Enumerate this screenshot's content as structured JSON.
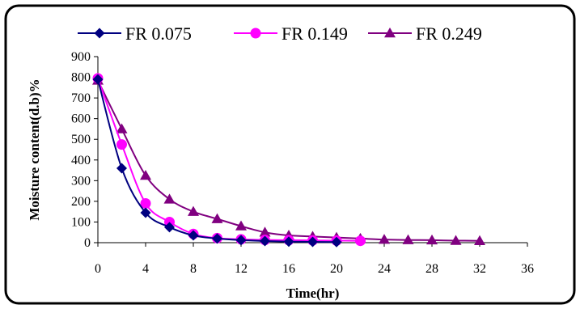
{
  "chart_data": {
    "type": "line",
    "title": "",
    "xlabel": "Time(hr)",
    "ylabel": "Moisture content(d.b)%",
    "xlim": [
      0,
      36
    ],
    "ylim": [
      0,
      900
    ],
    "xticks": [
      0,
      4,
      8,
      12,
      16,
      20,
      24,
      28,
      32,
      36
    ],
    "yticks": [
      0,
      100,
      200,
      300,
      400,
      500,
      600,
      700,
      800,
      900
    ],
    "grid": false,
    "legend_position": "top",
    "series": [
      {
        "name": "FR 0.075",
        "color": "#000080",
        "marker": "diamond",
        "x": [
          0,
          2,
          4,
          6,
          8,
          10,
          12,
          14,
          16,
          18,
          20
        ],
        "y": [
          790,
          360,
          145,
          75,
          35,
          20,
          12,
          8,
          5,
          4,
          3
        ]
      },
      {
        "name": "FR 0.149",
        "color": "#FF00FF",
        "marker": "circle",
        "x": [
          0,
          2,
          4,
          6,
          8,
          10,
          12,
          14,
          16,
          18,
          20,
          22
        ],
        "y": [
          795,
          475,
          190,
          100,
          42,
          22,
          16,
          13,
          12,
          11,
          10,
          9
        ]
      },
      {
        "name": "FR 0.249",
        "color": "#800080",
        "marker": "triangle",
        "x": [
          0,
          2,
          4,
          6,
          8,
          10,
          12,
          14,
          16,
          18,
          20,
          22,
          24,
          26,
          28,
          30,
          32
        ],
        "y": [
          785,
          550,
          325,
          210,
          150,
          115,
          80,
          50,
          35,
          30,
          25,
          20,
          15,
          13,
          12,
          10,
          9
        ]
      }
    ]
  }
}
